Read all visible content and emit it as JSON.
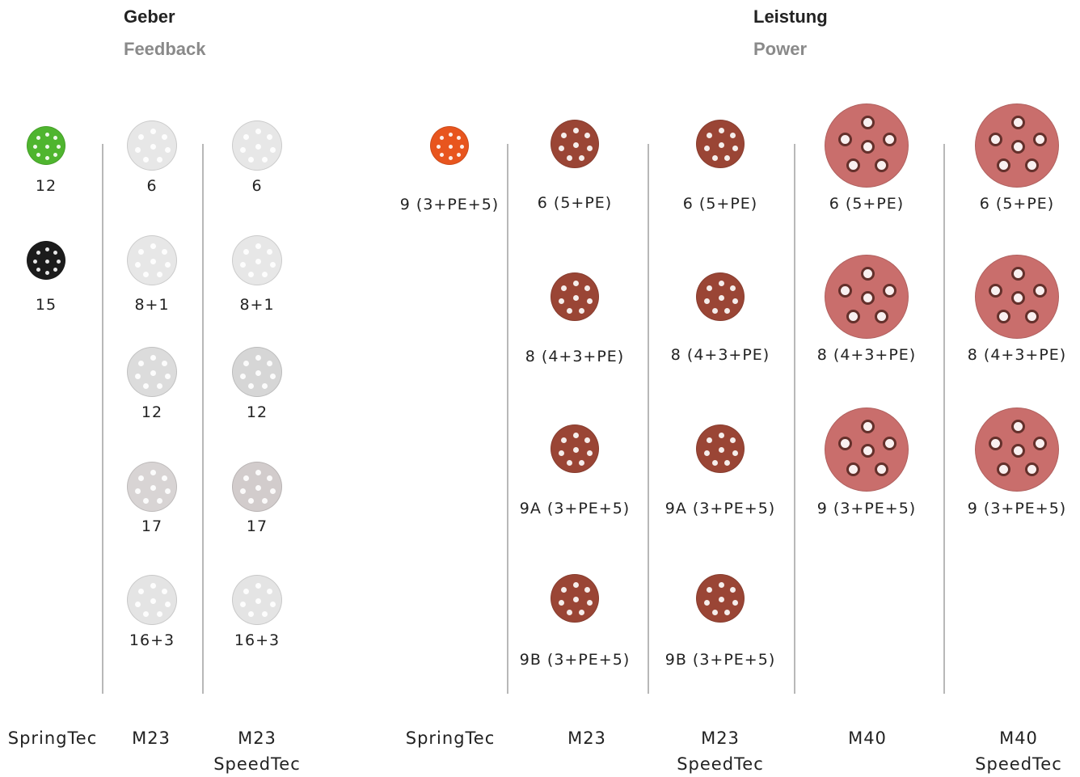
{
  "feedback_header": {
    "de": "Geber",
    "en": "Feedback"
  },
  "power_header": {
    "de": "Leistung",
    "en": "Power"
  },
  "columns": [
    {
      "id": "fb-springtec",
      "name": [
        "SpringTec"
      ],
      "items": [
        {
          "label": "12",
          "color": "#4fb52f"
        },
        {
          "label": "15",
          "color": "#1c1c1c"
        }
      ]
    },
    {
      "id": "fb-m23",
      "name": [
        "M23"
      ],
      "items": [
        {
          "label": "6",
          "color": "#e7e7e7"
        },
        {
          "label": "8+1",
          "color": "#e7e7e7"
        },
        {
          "label": "12",
          "color": "#dcdcdc"
        },
        {
          "label": "17",
          "color": "#d8d4d4"
        },
        {
          "label": "16+3",
          "color": "#e4e4e4"
        }
      ]
    },
    {
      "id": "fb-m23-speedtec",
      "name": [
        "M23",
        "SpeedTec"
      ],
      "items": [
        {
          "label": "6",
          "color": "#e7e7e7"
        },
        {
          "label": "8+1",
          "color": "#e7e7e7"
        },
        {
          "label": "12",
          "color": "#d6d6d6"
        },
        {
          "label": "17",
          "color": "#d2cccc"
        },
        {
          "label": "16+3",
          "color": "#e4e4e4"
        }
      ]
    },
    {
      "id": "pw-springtec",
      "name": [
        "SpringTec"
      ],
      "items": [
        {
          "label": "9 (3+PE+5)",
          "color": "#e8551e"
        }
      ]
    },
    {
      "id": "pw-m23",
      "name": [
        "M23"
      ],
      "items": [
        {
          "label": "6 (5+PE)",
          "color": "#9a4535"
        },
        {
          "label": "8 (4+3+PE)",
          "color": "#9a4535"
        },
        {
          "label": "9A (3+PE+5)",
          "color": "#9a4535"
        },
        {
          "label": "9B (3+PE+5)",
          "color": "#9a4535"
        }
      ]
    },
    {
      "id": "pw-m23-speedtec",
      "name": [
        "M23",
        "SpeedTec"
      ],
      "items": [
        {
          "label": "6 (5+PE)",
          "color": "#9a4535"
        },
        {
          "label": "8 (4+3+PE)",
          "color": "#9a4535"
        },
        {
          "label": "9A (3+PE+5)",
          "color": "#9a4535"
        },
        {
          "label": "9B (3+PE+5)",
          "color": "#9a4535"
        }
      ]
    },
    {
      "id": "pw-m40",
      "name": [
        "M40"
      ],
      "items": [
        {
          "label": "6 (5+PE)",
          "color": "#c96e6c"
        },
        {
          "label": "8 (4+3+PE)",
          "color": "#c96e6c"
        },
        {
          "label": "9 (3+PE+5)",
          "color": "#c96e6c"
        }
      ]
    },
    {
      "id": "pw-m40-speedtec",
      "name": [
        "M40",
        "SpeedTec"
      ],
      "items": [
        {
          "label": "6 (5+PE)",
          "color": "#c96e6c"
        },
        {
          "label": "8 (4+3+PE)",
          "color": "#c96e6c"
        },
        {
          "label": "9 (3+PE+5)",
          "color": "#c96e6c"
        }
      ]
    }
  ]
}
